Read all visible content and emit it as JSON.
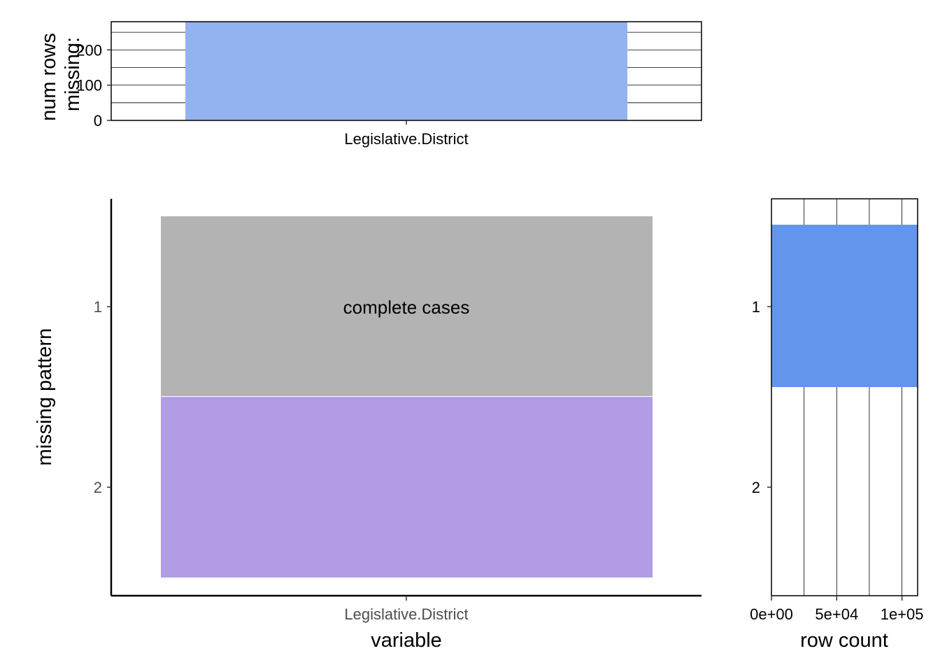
{
  "colors": {
    "top_bar": "#93B3F0",
    "complete": "#B3B3B3",
    "missing": "#B19CE5",
    "row_count_bar": "#6495ED"
  },
  "chart_data": [
    {
      "type": "bar",
      "ylabel": "num rows missing:",
      "ylabel_lines": [
        "num rows",
        "missing:"
      ],
      "categories": [
        "Legislative.District"
      ],
      "values": [
        280
      ],
      "ylim": [
        0,
        280
      ],
      "yticks": [
        0,
        100,
        200
      ],
      "ytick_labels": [
        "0",
        "100",
        "200"
      ],
      "grid": true
    },
    {
      "type": "heatmap",
      "xlabel": "variable",
      "ylabel": "missing pattern",
      "x_categories": [
        "Legislative.District"
      ],
      "y_categories": [
        "1",
        "2"
      ],
      "cells": [
        {
          "pattern": "1",
          "variable": "Legislative.District",
          "missing": false
        },
        {
          "pattern": "2",
          "variable": "Legislative.District",
          "missing": true
        }
      ],
      "annotation": "complete cases",
      "grid": false
    },
    {
      "type": "bar",
      "orientation": "horizontal",
      "xlabel": "row count",
      "categories": [
        "1",
        "2"
      ],
      "values": [
        112000,
        280
      ],
      "xlim": [
        0,
        112000
      ],
      "xticks": [
        0,
        50000,
        100000
      ],
      "xtick_labels": [
        "0e+00",
        "5e+04",
        "1e+05"
      ],
      "grid": true
    }
  ]
}
